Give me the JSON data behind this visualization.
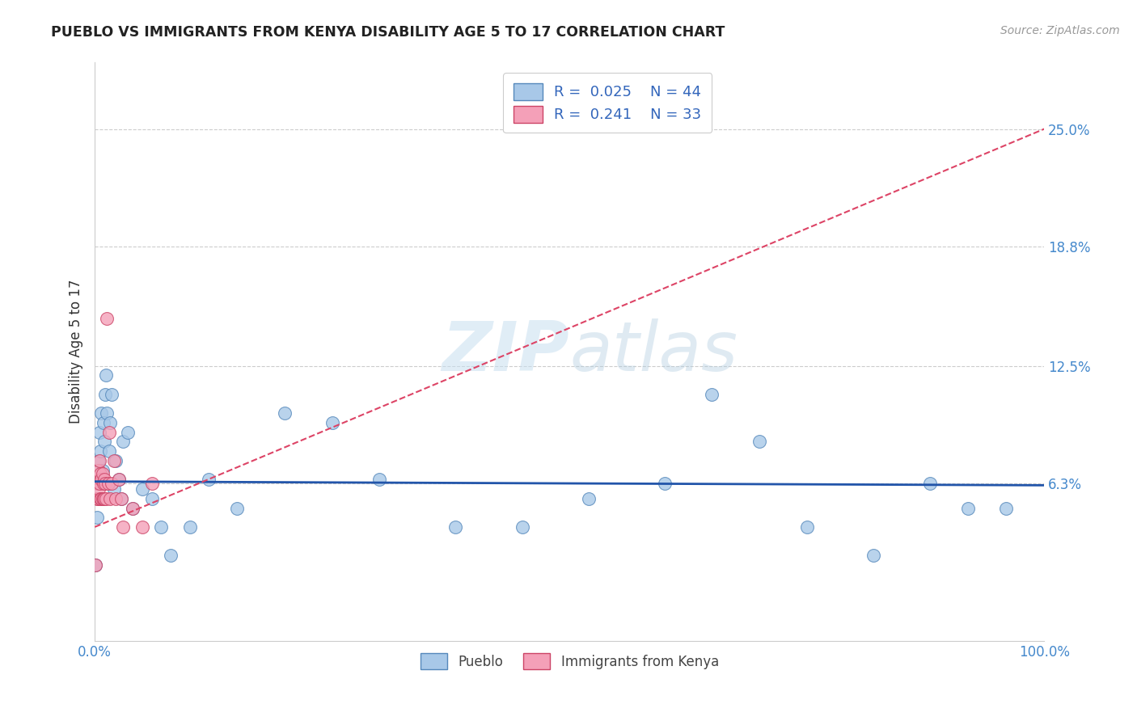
{
  "title": "PUEBLO VS IMMIGRANTS FROM KENYA DISABILITY AGE 5 TO 17 CORRELATION CHART",
  "source": "Source: ZipAtlas.com",
  "ylabel": "Disability Age 5 to 17",
  "xlim": [
    0.0,
    1.0
  ],
  "ylim": [
    -0.02,
    0.285
  ],
  "yticks": [
    0.063,
    0.125,
    0.188,
    0.25
  ],
  "ytick_labels": [
    "6.3%",
    "12.5%",
    "18.8%",
    "25.0%"
  ],
  "xtick_labels": [
    "0.0%",
    "100.0%"
  ],
  "xtick_positions": [
    0.0,
    1.0
  ],
  "pueblo_color": "#a8c8e8",
  "kenya_color": "#f4a0b8",
  "pueblo_edge": "#5588bb",
  "kenya_edge": "#cc4466",
  "pueblo_line_color": "#2255aa",
  "kenya_line_color": "#dd4466",
  "legend_label1": "R =  0.025    N = 44",
  "legend_label2": "R =  0.241    N = 33",
  "watermark_zip": "ZIP",
  "watermark_atlas": "atlas",
  "background_color": "#ffffff",
  "grid_color": "#cccccc",
  "pueblo_x": [
    0.001,
    0.002,
    0.003,
    0.004,
    0.005,
    0.006,
    0.007,
    0.008,
    0.009,
    0.01,
    0.011,
    0.012,
    0.013,
    0.015,
    0.016,
    0.018,
    0.02,
    0.022,
    0.025,
    0.028,
    0.03,
    0.035,
    0.04,
    0.05,
    0.06,
    0.07,
    0.08,
    0.1,
    0.12,
    0.15,
    0.2,
    0.25,
    0.3,
    0.38,
    0.45,
    0.52,
    0.6,
    0.65,
    0.7,
    0.75,
    0.82,
    0.88,
    0.92,
    0.96
  ],
  "pueblo_y": [
    0.02,
    0.045,
    0.063,
    0.075,
    0.09,
    0.08,
    0.1,
    0.07,
    0.095,
    0.085,
    0.11,
    0.12,
    0.1,
    0.08,
    0.095,
    0.11,
    0.06,
    0.075,
    0.065,
    0.055,
    0.085,
    0.09,
    0.05,
    0.06,
    0.055,
    0.04,
    0.025,
    0.04,
    0.065,
    0.05,
    0.1,
    0.095,
    0.065,
    0.04,
    0.04,
    0.055,
    0.063,
    0.11,
    0.085,
    0.04,
    0.025,
    0.063,
    0.05,
    0.05
  ],
  "kenya_x": [
    0.001,
    0.002,
    0.003,
    0.003,
    0.004,
    0.004,
    0.005,
    0.005,
    0.006,
    0.006,
    0.007,
    0.007,
    0.008,
    0.008,
    0.009,
    0.009,
    0.01,
    0.01,
    0.011,
    0.012,
    0.013,
    0.014,
    0.015,
    0.016,
    0.018,
    0.02,
    0.022,
    0.025,
    0.028,
    0.03,
    0.04,
    0.05,
    0.06
  ],
  "kenya_y": [
    0.02,
    0.055,
    0.055,
    0.063,
    0.06,
    0.07,
    0.063,
    0.075,
    0.055,
    0.068,
    0.055,
    0.065,
    0.055,
    0.068,
    0.055,
    0.063,
    0.055,
    0.065,
    0.063,
    0.055,
    0.15,
    0.063,
    0.09,
    0.055,
    0.063,
    0.075,
    0.055,
    0.065,
    0.055,
    0.04,
    0.05,
    0.04,
    0.063
  ],
  "pueblo_trend_x": [
    0.0,
    1.0
  ],
  "pueblo_trend_y": [
    0.064,
    0.062
  ],
  "kenya_trend_x": [
    0.0,
    1.0
  ],
  "kenya_trend_y": [
    0.04,
    0.25
  ]
}
